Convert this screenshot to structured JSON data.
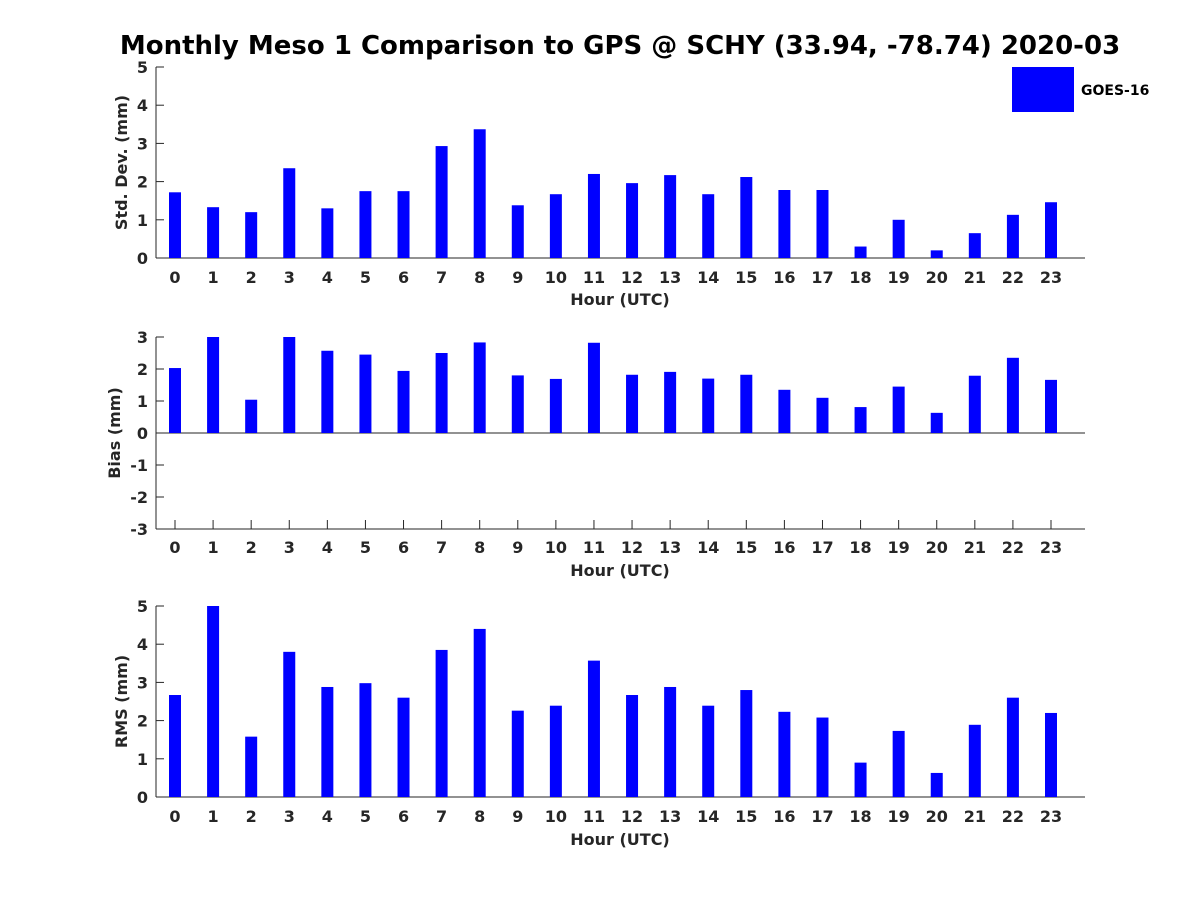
{
  "title": "Monthly Meso 1 Comparison to GPS @ SCHY (33.94, -78.74) 2020-03",
  "legend": {
    "label": "GOES-16",
    "color": "#0000ff"
  },
  "chart_data": [
    {
      "type": "bar",
      "name": "std-dev",
      "title": "",
      "xlabel": "Hour (UTC)",
      "ylabel": "Std. Dev. (mm)",
      "categories": [
        "0",
        "1",
        "2",
        "3",
        "4",
        "5",
        "6",
        "7",
        "8",
        "9",
        "10",
        "11",
        "12",
        "13",
        "14",
        "15",
        "16",
        "17",
        "18",
        "19",
        "20",
        "21",
        "22",
        "23"
      ],
      "ylim": [
        0,
        5
      ],
      "yticks": [
        "0",
        "1",
        "2",
        "3",
        "4",
        "5"
      ],
      "series": [
        {
          "name": "GOES-16",
          "values": [
            1.72,
            1.33,
            1.2,
            2.35,
            1.3,
            1.75,
            1.75,
            2.93,
            3.37,
            1.38,
            1.67,
            2.2,
            1.96,
            2.17,
            1.67,
            2.12,
            1.78,
            1.78,
            0.3,
            1.0,
            0.2,
            0.65,
            1.13,
            1.46
          ]
        }
      ]
    },
    {
      "type": "bar",
      "name": "bias",
      "title": "",
      "xlabel": "Hour (UTC)",
      "ylabel": "Bias (mm)",
      "categories": [
        "0",
        "1",
        "2",
        "3",
        "4",
        "5",
        "6",
        "7",
        "8",
        "9",
        "10",
        "11",
        "12",
        "13",
        "14",
        "15",
        "16",
        "17",
        "18",
        "19",
        "20",
        "21",
        "22",
        "23"
      ],
      "ylim": [
        -3,
        3
      ],
      "yticks": [
        "-3",
        "-2",
        "-1",
        "0",
        "1",
        "2",
        "3"
      ],
      "series": [
        {
          "name": "GOES-16",
          "values": [
            2.03,
            3.0,
            1.04,
            3.0,
            2.57,
            2.45,
            1.94,
            2.5,
            2.83,
            1.8,
            1.69,
            2.82,
            1.82,
            1.91,
            1.7,
            1.82,
            1.35,
            1.1,
            0.81,
            1.45,
            0.63,
            1.79,
            2.35,
            1.66
          ]
        }
      ]
    },
    {
      "type": "bar",
      "name": "rms",
      "title": "",
      "xlabel": "Hour (UTC)",
      "ylabel": "RMS (mm)",
      "categories": [
        "0",
        "1",
        "2",
        "3",
        "4",
        "5",
        "6",
        "7",
        "8",
        "9",
        "10",
        "11",
        "12",
        "13",
        "14",
        "15",
        "16",
        "17",
        "18",
        "19",
        "20",
        "21",
        "22",
        "23"
      ],
      "ylim": [
        0,
        5
      ],
      "yticks": [
        "0",
        "1",
        "2",
        "3",
        "4",
        "5"
      ],
      "series": [
        {
          "name": "GOES-16",
          "values": [
            2.67,
            5.0,
            1.58,
            3.8,
            2.88,
            2.98,
            2.6,
            3.85,
            4.4,
            2.26,
            2.39,
            3.57,
            2.67,
            2.88,
            2.39,
            2.8,
            2.23,
            2.08,
            0.9,
            1.73,
            0.63,
            1.89,
            2.6,
            2.2
          ]
        }
      ]
    }
  ]
}
